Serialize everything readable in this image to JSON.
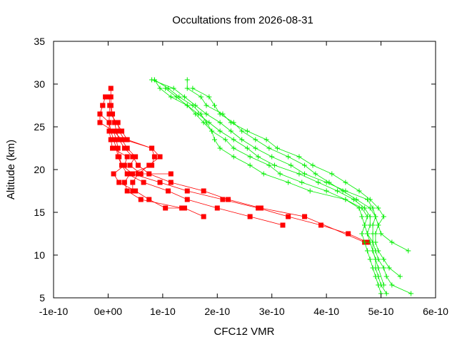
{
  "chart_data": {
    "type": "line",
    "title": "Occultations from 2026-08-31",
    "xlabel": "CFC12 VMR",
    "ylabel": "Altitude (km)",
    "xlim": [
      -1e-10,
      6e-10
    ],
    "ylim": [
      5,
      35
    ],
    "grid": false,
    "legend": "none",
    "x_ticks": [
      {
        "value": -1e-10,
        "label": "-1e-10"
      },
      {
        "value": 0,
        "label": "0e+00"
      },
      {
        "value": 1e-10,
        "label": "1e-10"
      },
      {
        "value": 2e-10,
        "label": "2e-10"
      },
      {
        "value": 3e-10,
        "label": "3e-10"
      },
      {
        "value": 4e-10,
        "label": "4e-10"
      },
      {
        "value": 5e-10,
        "label": "5e-10"
      },
      {
        "value": 6e-10,
        "label": "6e-10"
      }
    ],
    "y_ticks": [
      {
        "value": 5,
        "label": "5"
      },
      {
        "value": 10,
        "label": "10"
      },
      {
        "value": 15,
        "label": "15"
      },
      {
        "value": 20,
        "label": "20"
      },
      {
        "value": 25,
        "label": "25"
      },
      {
        "value": 30,
        "label": "30"
      },
      {
        "value": 35,
        "label": "35"
      }
    ],
    "series": [
      {
        "color": "#ff0000",
        "marker": "square",
        "points": [
          [
            4.75e-10,
            11.5
          ],
          [
            4.4e-10,
            12.5
          ],
          [
            3.9e-10,
            13.5
          ],
          [
            3.3e-10,
            14.5
          ],
          [
            2.75e-10,
            15.5
          ],
          [
            2.1e-10,
            16.5
          ],
          [
            1.45e-10,
            17.5
          ],
          [
            9.5e-11,
            18.5
          ],
          [
            4.5e-11,
            19.5
          ],
          [
            2.5e-11,
            20.5
          ],
          [
            1.8e-11,
            21.5
          ],
          [
            1.5e-11,
            22.5
          ],
          [
            1e-11,
            23.5
          ],
          [
            5e-12,
            24.5
          ],
          [
            2e-12,
            25.5
          ],
          [
            -1.5e-11,
            26.5
          ],
          [
            -1e-11,
            27.5
          ],
          [
            -5e-12,
            28.5
          ]
        ]
      },
      {
        "color": "#ff0000",
        "marker": "square",
        "points": [
          [
            4.7e-10,
            11.5
          ],
          [
            3.6e-10,
            14.5
          ],
          [
            2.8e-10,
            15.5
          ],
          [
            2.2e-10,
            16.5
          ],
          [
            1.75e-10,
            17.5
          ],
          [
            1.15e-10,
            18.5
          ],
          [
            7.5e-11,
            19.5
          ],
          [
            5.5e-11,
            20.5
          ],
          [
            4.5e-11,
            21.5
          ],
          [
            3e-11,
            22.5
          ],
          [
            2e-11,
            23.5
          ],
          [
            1.5e-11,
            24.5
          ],
          [
            1.2e-11,
            25.5
          ],
          [
            8e-12,
            26.5
          ],
          [
            5e-12,
            27.5
          ],
          [
            5e-12,
            28.5
          ],
          [
            5e-12,
            29.5
          ]
        ]
      },
      {
        "color": "#ff0000",
        "marker": "square",
        "points": [
          [
            3.2e-10,
            13.5
          ],
          [
            2.6e-10,
            14.5
          ],
          [
            2e-10,
            15.5
          ],
          [
            1.45e-10,
            16.5
          ],
          [
            1.1e-10,
            17.5
          ],
          [
            6.5e-11,
            18.5
          ],
          [
            3.5e-11,
            19.5
          ],
          [
            2.5e-11,
            20.5
          ],
          [
            2e-11,
            21.5
          ],
          [
            1.8e-11,
            22.5
          ],
          [
            1.5e-11,
            23.5
          ],
          [
            1e-11,
            24.5
          ],
          [
            -1.5e-11,
            25.5
          ],
          [
            -1.5e-11,
            26.5
          ],
          [
            -1e-11,
            27.5
          ]
        ]
      },
      {
        "color": "#ff0000",
        "marker": "square",
        "points": [
          [
            1.75e-10,
            14.5
          ],
          [
            1.4e-10,
            15.5
          ],
          [
            1.05e-10,
            15.5
          ],
          [
            7.5e-11,
            16.5
          ],
          [
            5e-11,
            17.5
          ],
          [
            2e-11,
            18.5
          ],
          [
            1e-11,
            19.5
          ],
          [
            3e-11,
            20.5
          ],
          [
            3.5e-11,
            21.5
          ],
          [
            8e-12,
            22.5
          ],
          [
            5e-12,
            23.5
          ],
          [
            2e-12,
            24.5
          ],
          [
            2e-12,
            25.5
          ],
          [
            2e-12,
            26.5
          ],
          [
            3e-12,
            27.5
          ],
          [
            2e-12,
            28.5
          ]
        ]
      },
      {
        "color": "#ff0000",
        "marker": "square",
        "points": [
          [
            1.35e-10,
            15.5
          ],
          [
            6e-11,
            16.5
          ],
          [
            3.5e-11,
            17.5
          ],
          [
            3e-11,
            18.5
          ],
          [
            4e-11,
            19.5
          ],
          [
            8e-11,
            20.5
          ],
          [
            8.5e-11,
            21.5
          ],
          [
            8e-11,
            22.5
          ],
          [
            3.5e-11,
            23.5
          ],
          [
            2.5e-11,
            24.5
          ],
          [
            1.5e-11,
            25.5
          ],
          [
            5e-12,
            26.5
          ],
          [
            5e-12,
            27.5
          ]
        ]
      },
      {
        "color": "#ff0000",
        "marker": "square",
        "points": [
          [
            4.5e-11,
            17.5
          ],
          [
            4.5e-11,
            18.5
          ],
          [
            5.5e-11,
            19.5
          ],
          [
            7.5e-11,
            20.5
          ],
          [
            9.5e-11,
            21.5
          ],
          [
            8e-11,
            22.5
          ],
          [
            3e-11,
            23.5
          ],
          [
            2e-11,
            24.5
          ],
          [
            1.8e-11,
            25.5
          ]
        ]
      },
      {
        "color": "#ff0000",
        "marker": "square",
        "points": [
          [
            1.15e-10,
            19.5
          ],
          [
            6e-11,
            19.5
          ],
          [
            4e-11,
            20.5
          ],
          [
            5e-11,
            21.5
          ],
          [
            3.5e-11,
            22.5
          ],
          [
            2.5e-11,
            23.5
          ],
          [
            1e-11,
            24.5
          ]
        ]
      },
      {
        "color": "#00ee00",
        "marker": "plus",
        "points": [
          [
            5.55e-10,
            5.5
          ],
          [
            5.2e-10,
            6.5
          ],
          [
            5.1e-10,
            7.5
          ],
          [
            5.05e-10,
            8.5
          ],
          [
            4.95e-10,
            9.5
          ],
          [
            4.9e-10,
            10.5
          ],
          [
            4.85e-10,
            11.5
          ],
          [
            4.85e-10,
            12.5
          ],
          [
            4.85e-10,
            13.5
          ],
          [
            4.9e-10,
            14.5
          ],
          [
            4.85e-10,
            15.5
          ],
          [
            4.75e-10,
            16.5
          ],
          [
            4.35e-10,
            17.5
          ],
          [
            4e-10,
            18.5
          ],
          [
            3.6e-10,
            19.5
          ],
          [
            3.35e-10,
            20.5
          ],
          [
            3e-10,
            21.5
          ],
          [
            2.7e-10,
            22.5
          ],
          [
            2.45e-10,
            23.5
          ],
          [
            2.25e-10,
            24.5
          ],
          [
            2.05e-10,
            25.5
          ],
          [
            1.8e-10,
            26.5
          ],
          [
            1.6e-10,
            27.5
          ],
          [
            1.4e-10,
            28.5
          ],
          [
            1.2e-10,
            29.5
          ],
          [
            8e-11,
            30.5
          ]
        ]
      },
      {
        "color": "#00ee00",
        "marker": "plus",
        "points": [
          [
            5.5e-10,
            10.5
          ],
          [
            5.2e-10,
            11.5
          ],
          [
            5e-10,
            12.5
          ],
          [
            4.95e-10,
            13.5
          ],
          [
            5.05e-10,
            14.5
          ],
          [
            4.95e-10,
            15.5
          ],
          [
            4.8e-10,
            16.5
          ],
          [
            4.6e-10,
            17.5
          ],
          [
            4.35e-10,
            18.5
          ],
          [
            4.1e-10,
            19.5
          ],
          [
            3.75e-10,
            20.5
          ],
          [
            3.5e-10,
            21.5
          ],
          [
            3.1e-10,
            22.5
          ],
          [
            2.9e-10,
            23.5
          ],
          [
            2.55e-10,
            24.5
          ],
          [
            2.25e-10,
            25.5
          ],
          [
            2.1e-10,
            26.5
          ],
          [
            1.8e-10,
            27.5
          ],
          [
            1.7e-10,
            28.5
          ],
          [
            1.45e-10,
            29.5
          ],
          [
            1.45e-10,
            30.5
          ]
        ]
      },
      {
        "color": "#00ee00",
        "marker": "plus",
        "points": [
          [
            5.1e-10,
            5.5
          ],
          [
            5e-10,
            6.5
          ],
          [
            4.95e-10,
            7.5
          ],
          [
            4.9e-10,
            8.5
          ],
          [
            4.9e-10,
            9.5
          ],
          [
            4.85e-10,
            10.5
          ],
          [
            4.85e-10,
            11.5
          ],
          [
            4.75e-10,
            12.5
          ],
          [
            4.8e-10,
            13.5
          ],
          [
            4.8e-10,
            14.5
          ],
          [
            4.7e-10,
            15.5
          ],
          [
            4.5e-10,
            16.5
          ],
          [
            4.2e-10,
            17.5
          ],
          [
            3.85e-10,
            18.5
          ],
          [
            3.5e-10,
            19.5
          ],
          [
            3.05e-10,
            20.5
          ],
          [
            2.75e-10,
            21.5
          ],
          [
            2.55e-10,
            22.5
          ],
          [
            2.3e-10,
            23.5
          ],
          [
            2.05e-10,
            24.5
          ],
          [
            1.85e-10,
            25.5
          ],
          [
            1.65e-10,
            26.5
          ],
          [
            1.45e-10,
            27.5
          ],
          [
            1.15e-10,
            28.5
          ],
          [
            9.5e-11,
            29.5
          ],
          [
            8.5e-11,
            30.5
          ]
        ]
      },
      {
        "color": "#00ee00",
        "marker": "plus",
        "points": [
          [
            5e-10,
            5.5
          ],
          [
            4.95e-10,
            6.5
          ],
          [
            4.9e-10,
            7.5
          ],
          [
            4.85e-10,
            8.5
          ],
          [
            4.8e-10,
            9.5
          ],
          [
            4.75e-10,
            10.5
          ],
          [
            4.7e-10,
            11.5
          ],
          [
            4.65e-10,
            12.5
          ],
          [
            4.7e-10,
            13.5
          ],
          [
            4.75e-10,
            14.5
          ],
          [
            4.65e-10,
            15.5
          ],
          [
            4.35e-10,
            16.5
          ],
          [
            4e-10,
            17.5
          ],
          [
            3.55e-10,
            18.5
          ],
          [
            3.15e-10,
            19.5
          ],
          [
            2.95e-10,
            20.5
          ],
          [
            2.6e-10,
            21.5
          ],
          [
            2.3e-10,
            22.5
          ],
          [
            2.15e-10,
            23.5
          ],
          [
            1.9e-10,
            24.5
          ],
          [
            1.75e-10,
            25.5
          ],
          [
            1.6e-10,
            26.5
          ],
          [
            1.45e-10,
            27.5
          ],
          [
            1.25e-10,
            28.5
          ],
          [
            1.05e-10,
            29.5
          ]
        ]
      },
      {
        "color": "#00ee00",
        "marker": "plus",
        "points": [
          [
            5.35e-10,
            7.5
          ],
          [
            5.15e-10,
            8.5
          ],
          [
            5.05e-10,
            9.5
          ],
          [
            4.95e-10,
            10.5
          ],
          [
            4.9e-10,
            11.5
          ],
          [
            4.9e-10,
            12.5
          ],
          [
            4.95e-10,
            13.5
          ],
          [
            4.9e-10,
            14.5
          ],
          [
            4.8e-10,
            15.5
          ],
          [
            4.55e-10,
            16.5
          ],
          [
            4.3e-10,
            17.5
          ],
          [
            4.05e-10,
            18.5
          ],
          [
            3.8e-10,
            19.5
          ],
          [
            3.6e-10,
            20.5
          ],
          [
            3.3e-10,
            21.5
          ],
          [
            2.95e-10,
            22.5
          ],
          [
            2.7e-10,
            23.5
          ],
          [
            2.45e-10,
            24.5
          ],
          [
            2.3e-10,
            25.5
          ],
          [
            2.05e-10,
            26.5
          ],
          [
            1.95e-10,
            27.5
          ],
          [
            1.85e-10,
            28.5
          ],
          [
            1.55e-10,
            29.5
          ]
        ]
      },
      {
        "color": "#00ee00",
        "marker": "plus",
        "points": [
          [
            5.05e-10,
            6.5
          ],
          [
            4.95e-10,
            8.5
          ],
          [
            4.9e-10,
            9.5
          ],
          [
            4.85e-10,
            10.5
          ],
          [
            4.8e-10,
            11.5
          ],
          [
            4.75e-10,
            12.5
          ],
          [
            4.7e-10,
            13.5
          ],
          [
            4.65e-10,
            14.5
          ],
          [
            4.6e-10,
            15.5
          ],
          [
            4.35e-10,
            16.5
          ],
          [
            3.7e-10,
            17.5
          ],
          [
            3.3e-10,
            18.5
          ],
          [
            2.85e-10,
            19.5
          ],
          [
            2.6e-10,
            20.5
          ],
          [
            2.3e-10,
            21.5
          ],
          [
            2.05e-10,
            22.5
          ],
          [
            1.95e-10,
            23.5
          ],
          [
            1.9e-10,
            24.5
          ],
          [
            1.8e-10,
            25.5
          ],
          [
            1.7e-10,
            26.5
          ],
          [
            1.55e-10,
            27.5
          ],
          [
            1.3e-10,
            28.5
          ],
          [
            1.1e-10,
            29.5
          ],
          [
            8.5e-11,
            30.5
          ]
        ]
      }
    ]
  }
}
